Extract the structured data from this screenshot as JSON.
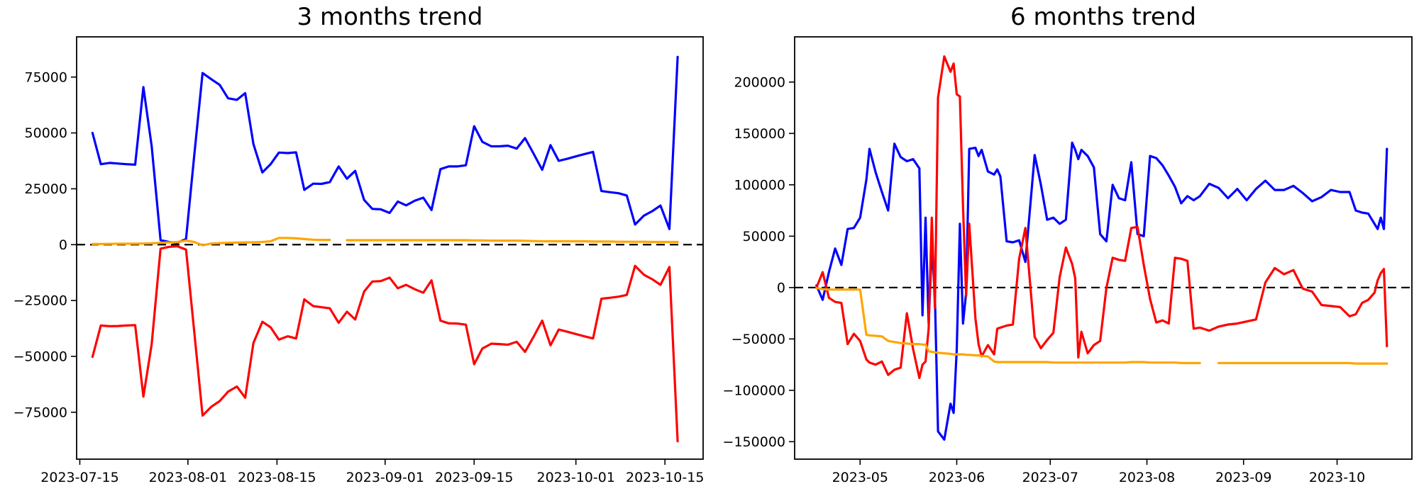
{
  "figure": {
    "background": "#ffffff",
    "axis_color": "#000000",
    "zero_line_color": "#000000",
    "series_colors": {
      "blue": "#0000ff",
      "red": "#ff0000",
      "orange": "#ffa500"
    }
  },
  "chart_data": [
    {
      "type": "line",
      "title": "3 months trend",
      "xlabel": "",
      "ylabel": "",
      "grid": false,
      "legend": null,
      "zero_line": true,
      "x_unit": "day-offset (0 = 2023-07-13)",
      "xlim": [
        1.5,
        100
      ],
      "ylim": [
        -96000,
        93000
      ],
      "x_ticks": [
        {
          "x": 2,
          "label": "2023-07-15"
        },
        {
          "x": 19,
          "label": "2023-08-01"
        },
        {
          "x": 33,
          "label": "2023-08-15"
        },
        {
          "x": 50,
          "label": "2023-09-01"
        },
        {
          "x": 64,
          "label": "2023-09-15"
        },
        {
          "x": 80,
          "label": "2023-10-01"
        },
        {
          "x": 94,
          "label": "2023-10-15"
        }
      ],
      "y_ticks": [
        {
          "y": 75000,
          "label": "75000"
        },
        {
          "y": 50000,
          "label": "50000"
        },
        {
          "y": 25000,
          "label": "25000"
        },
        {
          "y": 0,
          "label": "0"
        },
        {
          "y": -25000,
          "label": "−25000"
        },
        {
          "y": -50000,
          "label": "−50000"
        },
        {
          "y": -75000,
          "label": "−75000"
        }
      ],
      "x": [
        4,
        5.3,
        6.7,
        8,
        9.3,
        10.7,
        12,
        13.3,
        14.7,
        16,
        17.3,
        18.7,
        20,
        21.3,
        22.7,
        24,
        25.3,
        26.7,
        28,
        29.3,
        30.7,
        32,
        33.3,
        34.7,
        36,
        37.3,
        38.7,
        40,
        41.3,
        42.7,
        44,
        45.3,
        46.7,
        48,
        49.3,
        50.7,
        52,
        53.3,
        54.7,
        56,
        57.3,
        58.7,
        60,
        61.3,
        62.7,
        64,
        65.3,
        66.7,
        68,
        69.3,
        70.7,
        72,
        73.3,
        74.7,
        76,
        77.3,
        78.7,
        80,
        81.3,
        82.7,
        84,
        85.3,
        86.7,
        88,
        89.3,
        90.7,
        92,
        93.3,
        94.7,
        96
      ],
      "series": [
        {
          "name": "blue",
          "color": "#0000ff",
          "values": [
            50000,
            36000,
            36600,
            36300,
            36000,
            35800,
            70500,
            44000,
            2000,
            1200,
            800,
            2500,
            40000,
            76800,
            74000,
            71500,
            65500,
            64800,
            67800,
            45000,
            32300,
            36000,
            41200,
            41000,
            41300,
            24500,
            27300,
            27200,
            28000,
            35000,
            29500,
            33000,
            20000,
            16000,
            15800,
            14200,
            19300,
            17600,
            19700,
            21000,
            15500,
            33800,
            35000,
            35000,
            35500,
            53000,
            46000,
            44000,
            44000,
            44300,
            43000,
            47700,
            41000,
            33500,
            44500,
            37500,
            38500,
            39500,
            40500,
            41500,
            24000,
            23500,
            23000,
            22000,
            9000,
            13000,
            15000,
            17500,
            7000,
            84000
          ]
        },
        {
          "name": "red",
          "color": "#ff0000",
          "values": [
            -50200,
            -36200,
            -36500,
            -36400,
            -36200,
            -36000,
            -68000,
            -44500,
            -1800,
            -1000,
            -700,
            -2200,
            -39000,
            -76500,
            -72500,
            -70000,
            -65800,
            -63500,
            -68500,
            -44000,
            -34500,
            -37000,
            -42500,
            -41000,
            -42000,
            -24500,
            -27500,
            -28000,
            -28500,
            -35000,
            -30000,
            -33500,
            -21000,
            -16500,
            -16300,
            -14800,
            -19500,
            -18000,
            -20000,
            -21500,
            -16000,
            -34000,
            -35200,
            -35300,
            -35800,
            -53500,
            -46500,
            -44300,
            -44500,
            -44800,
            -43500,
            -48000,
            -41500,
            -34000,
            -45000,
            -38000,
            -39000,
            -40000,
            -41000,
            -42000,
            -24200,
            -23800,
            -23300,
            -22500,
            -9500,
            -13500,
            -15500,
            -18000,
            -10000,
            -88000
          ]
        },
        {
          "name": "orange",
          "color": "#ffa500",
          "values": [
            300,
            300,
            350,
            400,
            400,
            450,
            500,
            600,
            800,
            1000,
            1200,
            1800,
            1200,
            -300,
            500,
            700,
            800,
            900,
            1000,
            1100,
            1200,
            1500,
            3000,
            3000,
            2800,
            2500,
            2200,
            2100,
            2100,
            null,
            2000,
            2000,
            2000,
            2000,
            2000,
            2000,
            2000,
            2000,
            2000,
            2000,
            2000,
            2000,
            2000,
            2000,
            2000,
            1900,
            1900,
            1800,
            1800,
            1800,
            1800,
            1700,
            1600,
            1500,
            1500,
            1500,
            1500,
            1500,
            1500,
            1400,
            1400,
            1400,
            1300,
            1300,
            1300,
            1300,
            1200,
            1200,
            1200,
            1200
          ]
        }
      ]
    },
    {
      "type": "line",
      "title": "6 months trend",
      "xlabel": "",
      "ylabel": "",
      "grid": false,
      "legend": null,
      "zero_line": true,
      "x_unit": "day-offset (0 = 2023-04-10)",
      "xlim": [
        0,
        198
      ],
      "ylim": [
        -167000,
        244000
      ],
      "x_ticks": [
        {
          "x": 21,
          "label": "2023-05"
        },
        {
          "x": 52,
          "label": "2023-06"
        },
        {
          "x": 82,
          "label": "2023-07"
        },
        {
          "x": 113,
          "label": "2023-08"
        },
        {
          "x": 144,
          "label": "2023-09"
        },
        {
          "x": 174,
          "label": "2023-10"
        }
      ],
      "y_ticks": [
        {
          "y": 200000,
          "label": "200000"
        },
        {
          "y": 150000,
          "label": "150000"
        },
        {
          "y": 100000,
          "label": "100000"
        },
        {
          "y": 50000,
          "label": "50000"
        },
        {
          "y": 0,
          "label": "0"
        },
        {
          "y": -50000,
          "label": "−50000"
        },
        {
          "y": -100000,
          "label": "−100000"
        },
        {
          "y": -150000,
          "label": "−150000"
        }
      ],
      "x": [
        7,
        9,
        11,
        13,
        15,
        17,
        19,
        21,
        23,
        24,
        26,
        28,
        30,
        32,
        34,
        36,
        38,
        40,
        41,
        42,
        43,
        44,
        45,
        46,
        48,
        50,
        51,
        52,
        53,
        54,
        55,
        56,
        58,
        59,
        60,
        62,
        64,
        65,
        66,
        68,
        70,
        72,
        74,
        77,
        79,
        81,
        83,
        85,
        87,
        89,
        90,
        91,
        92,
        94,
        96,
        98,
        100,
        102,
        104,
        106,
        108,
        110,
        112,
        114,
        116,
        118,
        120,
        122,
        124,
        126,
        128,
        130,
        133,
        136,
        139,
        142,
        145,
        148,
        151,
        154,
        157,
        160,
        163,
        166,
        169,
        172,
        175,
        178,
        180,
        182,
        184,
        186,
        187,
        188,
        189,
        190
      ],
      "series": [
        {
          "name": "blue",
          "color": "#0000ff",
          "values": [
            2000,
            -12000,
            15000,
            38000,
            22000,
            57000,
            58000,
            68000,
            105000,
            135000,
            112000,
            93000,
            75000,
            140000,
            127000,
            123000,
            125000,
            116000,
            -27000,
            68000,
            -35000,
            40000,
            -8000,
            -140000,
            -148000,
            -113000,
            -122000,
            -60000,
            62000,
            -35000,
            -5000,
            135000,
            136000,
            128000,
            134000,
            113000,
            110000,
            115000,
            108000,
            45000,
            44000,
            46000,
            25000,
            129000,
            100000,
            66000,
            68000,
            62000,
            66000,
            141000,
            134000,
            125000,
            134000,
            128000,
            117000,
            52000,
            45000,
            100000,
            87000,
            85000,
            122000,
            52000,
            50000,
            128000,
            126000,
            119000,
            109000,
            98000,
            82000,
            89000,
            85000,
            89000,
            101000,
            97000,
            87000,
            96000,
            85000,
            96000,
            104000,
            95000,
            95000,
            99000,
            92000,
            84000,
            88000,
            95000,
            93000,
            93000,
            75000,
            73000,
            72000,
            62000,
            57000,
            68000,
            57000,
            135000
          ]
        },
        {
          "name": "red",
          "color": "#ff0000",
          "values": [
            0,
            15000,
            -10000,
            -14000,
            -15000,
            -55000,
            -45000,
            -52000,
            -70000,
            -73000,
            -75000,
            -72000,
            -85000,
            -80000,
            -78000,
            -25000,
            -60000,
            -88000,
            -75000,
            -72000,
            -40000,
            68000,
            -20000,
            185000,
            225000,
            210000,
            218000,
            188000,
            186000,
            79000,
            -8000,
            62000,
            -30000,
            -55000,
            -67000,
            -56000,
            -65000,
            -40000,
            -39000,
            -37000,
            -36000,
            28000,
            58000,
            -48000,
            -59000,
            -51000,
            -44000,
            10000,
            39000,
            23000,
            9000,
            -68000,
            -43000,
            -64000,
            -56000,
            -52000,
            -500,
            29000,
            27000,
            26000,
            58000,
            59000,
            22000,
            -11000,
            -34000,
            -32000,
            -35000,
            29000,
            28000,
            26000,
            -40000,
            -39000,
            -42000,
            -38000,
            -36000,
            -35000,
            -33000,
            -31000,
            5000,
            19000,
            13000,
            17000,
            -1000,
            -4000,
            -17000,
            -18000,
            -19000,
            -28000,
            -26000,
            -15000,
            -12000,
            -5000,
            7000,
            14000,
            18000,
            -57000
          ]
        },
        {
          "name": "orange",
          "color": "#ffa500",
          "values": [
            -500,
            -1500,
            -2000,
            -2000,
            -2000,
            -2000,
            -2000,
            -2000,
            -46000,
            -46500,
            -47000,
            -47500,
            -52000,
            -53000,
            -54000,
            -54500,
            -55000,
            -55000,
            -55500,
            -55500,
            -62000,
            -62500,
            -63000,
            -63500,
            -64000,
            -64500,
            -65000,
            -65000,
            -65000,
            -65000,
            -65500,
            -65500,
            -66000,
            -66000,
            -66500,
            -67000,
            -72000,
            -72500,
            -72500,
            -72500,
            -72500,
            -72500,
            -72500,
            -72500,
            -72500,
            -72500,
            -73000,
            -73000,
            -73000,
            -73000,
            -73000,
            -73000,
            -73000,
            -73000,
            -73000,
            -73000,
            -73000,
            -73000,
            -73000,
            -73000,
            -72500,
            -72500,
            -72500,
            -73000,
            -73000,
            -73000,
            -73000,
            -73000,
            -73500,
            -73500,
            -73500,
            -73500,
            null,
            -73500,
            -73500,
            -73500,
            -73500,
            -73500,
            -73500,
            -73500,
            -73500,
            -73500,
            -73500,
            -73500,
            -73500,
            -73500,
            -73500,
            -73500,
            -74000,
            -74000,
            -74000,
            -74000,
            -74000,
            -74000,
            -74000,
            -74000
          ]
        }
      ]
    }
  ]
}
